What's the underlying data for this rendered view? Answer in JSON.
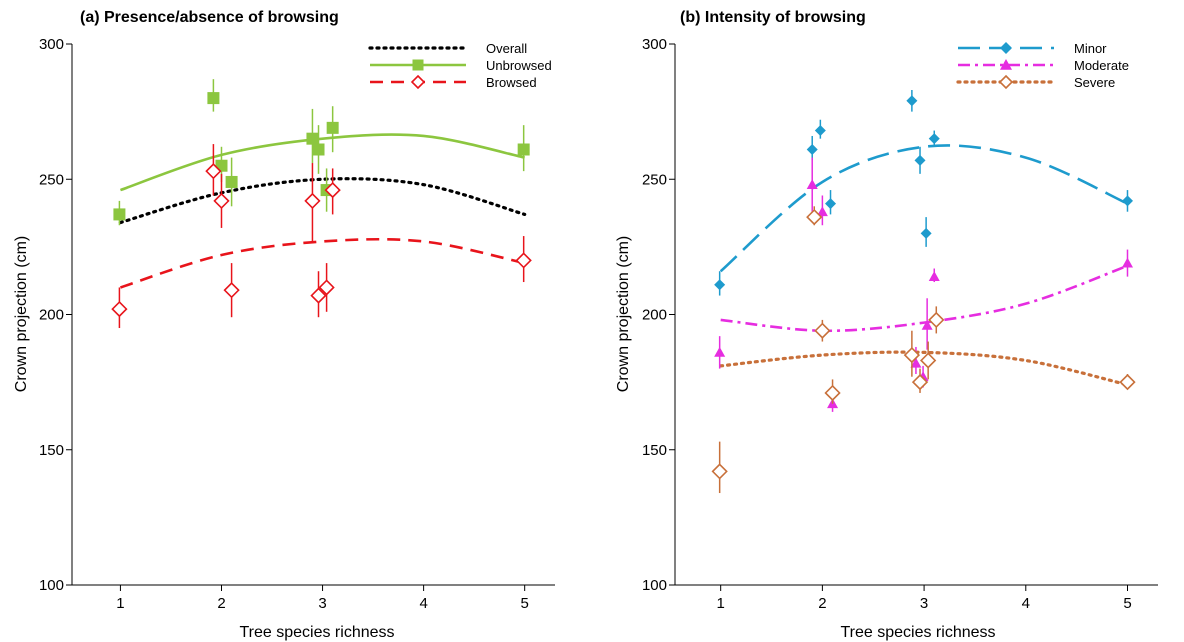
{
  "chart_data": [
    {
      "type": "scatter",
      "title": "(a) Presence/absence of browsing",
      "xlabel": "Tree species richness",
      "ylabel": "Crown projection (cm)",
      "xlim": [
        0.6,
        5.3
      ],
      "ylim": [
        100,
        300
      ],
      "xticks": [
        1,
        2,
        3,
        4,
        5
      ],
      "yticks": [
        100,
        150,
        200,
        250,
        300
      ],
      "grid": false,
      "legend_position": "top-right",
      "legend": [
        {
          "label": "Overall",
          "color": "#000000",
          "dash": "dotted",
          "marker": "none"
        },
        {
          "label": "Unbrowsed",
          "color": "#8cc63f",
          "dash": "solid",
          "marker": "square"
        },
        {
          "label": "Browsed",
          "color": "#e8141b",
          "dash": "dashed",
          "marker": "open-diamond"
        }
      ],
      "fits": [
        {
          "name": "Overall",
          "color": "#000000",
          "dash": "dotted",
          "x": [
            1,
            2,
            3,
            4,
            5
          ],
          "y": [
            234,
            245,
            250,
            248,
            237
          ]
        },
        {
          "name": "Unbrowsed",
          "color": "#8cc63f",
          "dash": "solid",
          "x": [
            1,
            2,
            3,
            4,
            5
          ],
          "y": [
            246,
            259,
            265,
            266,
            258
          ]
        },
        {
          "name": "Browsed",
          "color": "#e8141b",
          "dash": "dashed",
          "x": [
            1,
            2,
            3,
            4,
            5
          ],
          "y": [
            210,
            222,
            227,
            227,
            219
          ]
        }
      ],
      "series": [
        {
          "name": "Unbrowsed",
          "marker": "square",
          "color": "#8cc63f",
          "points": [
            {
              "x": 0.99,
              "y": 237,
              "lo": 233,
              "hi": 242
            },
            {
              "x": 1.92,
              "y": 280,
              "lo": 275,
              "hi": 287
            },
            {
              "x": 2.0,
              "y": 255,
              "lo": 249,
              "hi": 262
            },
            {
              "x": 2.1,
              "y": 249,
              "lo": 240,
              "hi": 258
            },
            {
              "x": 2.9,
              "y": 265,
              "lo": 256,
              "hi": 276
            },
            {
              "x": 2.96,
              "y": 261,
              "lo": 252,
              "hi": 270
            },
            {
              "x": 3.04,
              "y": 246,
              "lo": 238,
              "hi": 254
            },
            {
              "x": 3.1,
              "y": 269,
              "lo": 260,
              "hi": 277
            },
            {
              "x": 4.99,
              "y": 261,
              "lo": 253,
              "hi": 270
            }
          ]
        },
        {
          "name": "Browsed",
          "marker": "open-diamond",
          "color": "#e8141b",
          "points": [
            {
              "x": 0.99,
              "y": 202,
              "lo": 195,
              "hi": 210
            },
            {
              "x": 1.92,
              "y": 253,
              "lo": 244,
              "hi": 263
            },
            {
              "x": 2.0,
              "y": 242,
              "lo": 232,
              "hi": 252
            },
            {
              "x": 2.1,
              "y": 209,
              "lo": 199,
              "hi": 219
            },
            {
              "x": 2.9,
              "y": 242,
              "lo": 227,
              "hi": 256
            },
            {
              "x": 2.96,
              "y": 207,
              "lo": 199,
              "hi": 216
            },
            {
              "x": 3.04,
              "y": 210,
              "lo": 201,
              "hi": 219
            },
            {
              "x": 3.1,
              "y": 246,
              "lo": 237,
              "hi": 254
            },
            {
              "x": 4.99,
              "y": 220,
              "lo": 212,
              "hi": 229
            }
          ]
        }
      ]
    },
    {
      "type": "scatter",
      "title": "(b) Intensity of browsing",
      "xlabel": "Tree species richness",
      "ylabel": "Crown projection (cm)",
      "xlim": [
        0.6,
        5.3
      ],
      "ylim": [
        100,
        300
      ],
      "xticks": [
        1,
        2,
        3,
        4,
        5
      ],
      "yticks": [
        100,
        150,
        200,
        250,
        300
      ],
      "grid": false,
      "legend_position": "top-right",
      "legend": [
        {
          "label": "Minor",
          "color": "#1e9bcd",
          "dash": "longdash",
          "marker": "diamond"
        },
        {
          "label": "Moderate",
          "color": "#e62de0",
          "dash": "dashdot",
          "marker": "triangle"
        },
        {
          "label": "Severe",
          "color": "#c8703a",
          "dash": "dotted",
          "marker": "open-diamond"
        }
      ],
      "fits": [
        {
          "name": "Minor",
          "color": "#1e9bcd",
          "dash": "longdash",
          "x": [
            1,
            2,
            3,
            4,
            5
          ],
          "y": [
            216,
            249,
            262,
            258,
            241
          ]
        },
        {
          "name": "Moderate",
          "color": "#e62de0",
          "dash": "dashdot",
          "x": [
            1,
            2,
            3,
            4,
            5
          ],
          "y": [
            198,
            194,
            197,
            204,
            218
          ]
        },
        {
          "name": "Severe",
          "color": "#c8703a",
          "dash": "dotted",
          "x": [
            1,
            2,
            3,
            4,
            5
          ],
          "y": [
            181,
            185,
            186,
            183,
            174
          ]
        }
      ],
      "series": [
        {
          "name": "Minor",
          "marker": "diamond",
          "color": "#1e9bcd",
          "points": [
            {
              "x": 0.99,
              "y": 211,
              "lo": 207,
              "hi": 216
            },
            {
              "x": 1.9,
              "y": 261,
              "lo": 257,
              "hi": 266
            },
            {
              "x": 1.98,
              "y": 268,
              "lo": 265,
              "hi": 272
            },
            {
              "x": 2.08,
              "y": 241,
              "lo": 237,
              "hi": 246
            },
            {
              "x": 2.88,
              "y": 279,
              "lo": 275,
              "hi": 283
            },
            {
              "x": 2.96,
              "y": 257,
              "lo": 252,
              "hi": 262
            },
            {
              "x": 3.02,
              "y": 230,
              "lo": 225,
              "hi": 236
            },
            {
              "x": 3.1,
              "y": 265,
              "lo": 262,
              "hi": 268
            },
            {
              "x": 5.0,
              "y": 242,
              "lo": 238,
              "hi": 246
            }
          ]
        },
        {
          "name": "Moderate",
          "marker": "triangle",
          "color": "#e62de0",
          "points": [
            {
              "x": 0.99,
              "y": 186,
              "lo": 180,
              "hi": 192
            },
            {
              "x": 1.9,
              "y": 248,
              "lo": 237,
              "hi": 258
            },
            {
              "x": 2.0,
              "y": 238,
              "lo": 233,
              "hi": 244
            },
            {
              "x": 2.1,
              "y": 167,
              "lo": 164,
              "hi": 171
            },
            {
              "x": 2.92,
              "y": 182,
              "lo": 178,
              "hi": 188
            },
            {
              "x": 2.99,
              "y": 177,
              "lo": 173,
              "hi": 181
            },
            {
              "x": 3.03,
              "y": 196,
              "lo": 187,
              "hi": 206
            },
            {
              "x": 3.1,
              "y": 214,
              "lo": 212,
              "hi": 217
            },
            {
              "x": 5.0,
              "y": 219,
              "lo": 214,
              "hi": 224
            }
          ]
        },
        {
          "name": "Severe",
          "marker": "open-diamond",
          "color": "#c8703a",
          "points": [
            {
              "x": 0.99,
              "y": 142,
              "lo": 134,
              "hi": 153
            },
            {
              "x": 1.92,
              "y": 236,
              "lo": 233,
              "hi": 240
            },
            {
              "x": 2.0,
              "y": 194,
              "lo": 190,
              "hi": 198
            },
            {
              "x": 2.1,
              "y": 171,
              "lo": 167,
              "hi": 176
            },
            {
              "x": 2.88,
              "y": 185,
              "lo": 177,
              "hi": 194
            },
            {
              "x": 2.96,
              "y": 175,
              "lo": 171,
              "hi": 180
            },
            {
              "x": 3.04,
              "y": 183,
              "lo": 176,
              "hi": 190
            },
            {
              "x": 3.12,
              "y": 198,
              "lo": 193,
              "hi": 203
            },
            {
              "x": 5.0,
              "y": 175,
              "lo": 173,
              "hi": 178
            }
          ]
        }
      ]
    }
  ]
}
